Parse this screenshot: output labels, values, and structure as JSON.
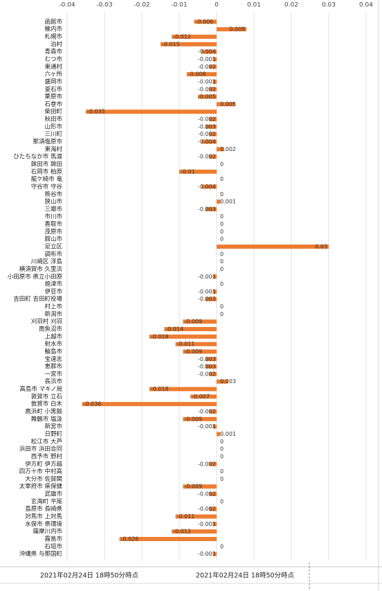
{
  "chart_data": {
    "type": "hbar",
    "categories": [
      "函館市",
      "稚内市",
      "札幌市",
      "泊村",
      "青森市",
      "むつ市",
      "東通村",
      "六ヶ所",
      "盛岡市",
      "釜石市",
      "栗原市",
      "石巻市",
      "柴田町",
      "秋田市",
      "山形市",
      "三川町",
      "那須塩原市",
      "東海村",
      "ひたちなか市 馬渡",
      "鉾田市 鉾田",
      "石岡市 柏原",
      "龍ケ崎市 竜",
      "守谷市 守谷",
      "熊谷市",
      "狭山市",
      "三郷市",
      "市川市",
      "香取市",
      "茂原市",
      "館山市",
      "足立区",
      "調布市",
      "川崎区 浮島",
      "横須賀市 久里浜",
      "小田原市 県立小田原",
      "焼津市",
      "伊豆市",
      "吉田町 吉田町役場",
      "村上市",
      "新潟市",
      "刈羽村 刈羽",
      "南魚沼市",
      "上越市",
      "射水市",
      "輪島市",
      "宝達志",
      "恵那市",
      "一宮市",
      "長浜市",
      "高島市 マキノ局",
      "敦賀市 立石",
      "敦賀市 白木",
      "高浜町 小黒飯",
      "舞鶴市 塩汲",
      "新宮市",
      "日野町",
      "松江市 大芦",
      "浜田市 浜田合同",
      "西予市 野村",
      "伊方町 伊方越",
      "四万十市 中村高",
      "大分市 佐賀関",
      "太宰府市 県保健",
      "武雄市",
      "玄海町 平尾",
      "島原市 長崎県",
      "対馬市 上対馬",
      "水俣市 県環境",
      "薩摩川内市",
      "霧島市",
      "石垣市",
      "沖縄県 与那国町"
    ],
    "values": [
      -0.006,
      0.008,
      -0.012,
      -0.015,
      -0.004,
      -0.001,
      -0.002,
      -0.008,
      -0.001,
      -0.002,
      -0.005,
      0.005,
      -0.035,
      -0.002,
      -0.003,
      -0.002,
      -0.004,
      0.002,
      -0.002,
      0,
      -0.01,
      0,
      -0.004,
      0,
      0.001,
      -0.003,
      0,
      0,
      0,
      0,
      0.03,
      0,
      0,
      0,
      -0.001,
      0,
      -0.001,
      -0.003,
      0,
      0,
      -0.009,
      -0.014,
      -0.018,
      -0.011,
      -0.009,
      -0.003,
      -0.003,
      -0.002,
      0.003,
      -0.018,
      -0.007,
      -0.036,
      -0.002,
      -0.009,
      -0.001,
      0.001,
      0,
      0,
      0,
      -0.002,
      0,
      0,
      -0.009,
      -0.002,
      0,
      -0.002,
      -0.011,
      -0.001,
      -0.012,
      -0.026,
      0,
      -0.001
    ],
    "color": "#ed7d31",
    "xlim": [
      -0.04,
      0.04
    ],
    "xticks": [
      -0.04,
      -0.03,
      -0.02,
      -0.01,
      0,
      0.01,
      0.02,
      0.03,
      0.04
    ],
    "grid": true,
    "footer": [
      "2021年02月24日 18時50分時点",
      "2021年02月24日 18時50分時点"
    ]
  }
}
